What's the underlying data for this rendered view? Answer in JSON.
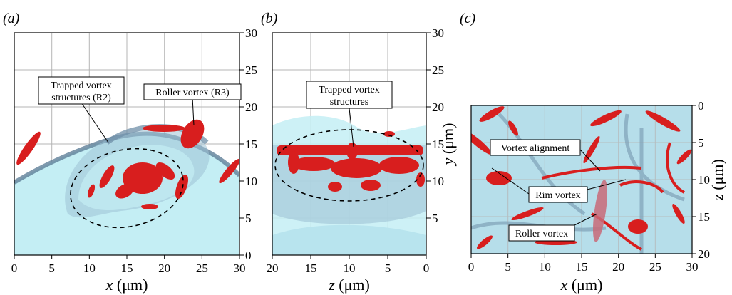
{
  "panels": [
    {
      "id": "a",
      "label": "(a)",
      "x_ticks": [
        "0",
        "5",
        "10",
        "15",
        "20",
        "25",
        "30"
      ],
      "y_ticks": [
        "0",
        "5",
        "10",
        "15",
        "20",
        "25",
        "30"
      ],
      "xlabel_var": "x",
      "xlabel_unit": " (μm)",
      "annotations": [
        {
          "lines": [
            "Trapped vortex",
            "structures (R2)"
          ]
        },
        {
          "lines": [
            "Roller vortex (R3)"
          ]
        }
      ]
    },
    {
      "id": "b",
      "label": "(b)",
      "x_ticks": [
        "20",
        "15",
        "10",
        "5",
        "0"
      ],
      "y_ticks": [
        "5",
        "10",
        "15",
        "20",
        "25",
        "30"
      ],
      "xlabel_var": "z",
      "xlabel_unit": " (μm)",
      "ylabel_var": "y",
      "ylabel_unit": " (μm)",
      "annotations": [
        {
          "lines": [
            "Trapped vortex",
            "structures"
          ]
        }
      ]
    },
    {
      "id": "c",
      "label": "(c)",
      "x_ticks": [
        "0",
        "5",
        "10",
        "15",
        "20",
        "25",
        "30"
      ],
      "y_ticks": [
        "0",
        "5",
        "10",
        "15",
        "20"
      ],
      "xlabel_var": "x",
      "xlabel_unit": " (μm)",
      "ylabel_var": "z",
      "ylabel_unit": " (μm)",
      "annotations": [
        {
          "lines": [
            "Vortex alignment"
          ]
        },
        {
          "lines": [
            "Rim vortex"
          ]
        },
        {
          "lines": [
            "Roller vortex"
          ]
        }
      ]
    }
  ],
  "colors": {
    "liquid": "#c4eef4",
    "interface": "#8fb0c4",
    "interface_dark": "#5f7f98",
    "vortex": "#d81e1e",
    "grid": "#b5b5b5"
  }
}
